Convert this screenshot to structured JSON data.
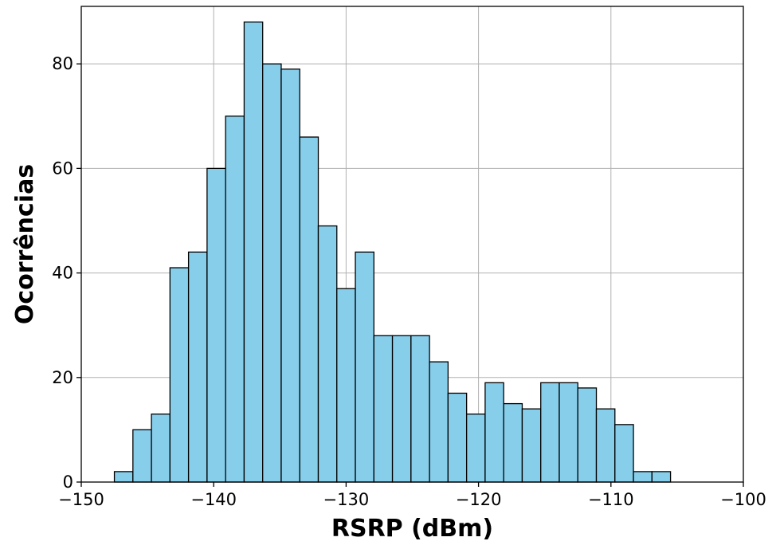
{
  "chart_data": {
    "type": "bar",
    "title": "",
    "xlabel": "RSRP (dBm)",
    "ylabel": "Ocorrências",
    "xlim": [
      -150,
      -100
    ],
    "ylim": [
      0,
      91
    ],
    "grid": true,
    "bar_color": "#87CEEB",
    "edge_color": "#000000",
    "bin_start": -147.5,
    "bin_width": 1.4,
    "values": [
      2,
      10,
      13,
      41,
      44,
      60,
      70,
      88,
      80,
      79,
      66,
      49,
      37,
      44,
      28,
      28,
      28,
      23,
      17,
      13,
      19,
      15,
      14,
      19,
      19,
      18,
      14,
      11,
      2,
      2
    ],
    "x_ticks": [
      -150,
      -140,
      -130,
      -120,
      -110,
      -100
    ],
    "x_tick_labels": [
      "−150",
      "−140",
      "−130",
      "−120",
      "−110",
      "−100"
    ],
    "y_ticks": [
      0,
      20,
      40,
      60,
      80
    ],
    "y_tick_labels": [
      "0",
      "20",
      "40",
      "60",
      "80"
    ]
  }
}
